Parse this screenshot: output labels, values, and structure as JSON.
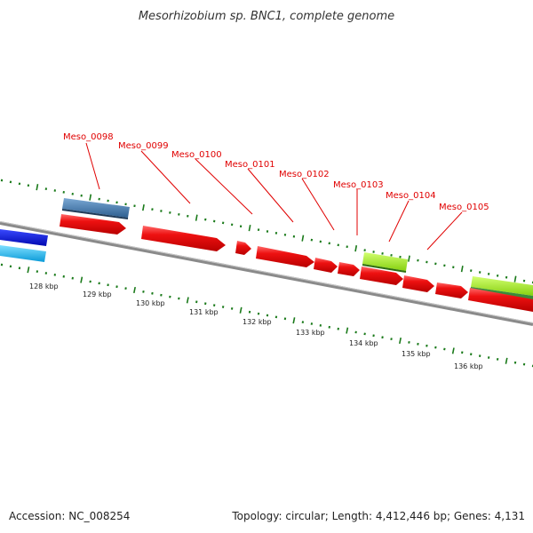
{
  "title": "Mesorhizobium sp. BNC1, complete genome",
  "footer": {
    "accession": "Accession: NC_008254",
    "summary": "Topology: circular; Length: 4,412,446 bp; Genes: 4,131"
  },
  "colors": {
    "gene": "#ee1111",
    "gene_label": "#e00000",
    "backbone": "#8a8a8a",
    "ticks": "#1a7a1a",
    "blue_dark": "#0a14d8",
    "blue_light": "#18b8ee",
    "steel_blue": "#4a7fb0",
    "lime": "#a6ee2a",
    "green_dark": "#3a8a3a"
  },
  "gene_labels": [
    "Meso_0098",
    "Meso_0099",
    "Meso_0100",
    "Meso_0101",
    "Meso_0102",
    "Meso_0103",
    "Meso_0104",
    "Meso_0105"
  ],
  "kbp_labels": [
    "128 kbp",
    "129 kbp",
    "130 kbp",
    "131 kbp",
    "132 kbp",
    "133 kbp",
    "134 kbp",
    "135 kbp",
    "136 kbp"
  ]
}
